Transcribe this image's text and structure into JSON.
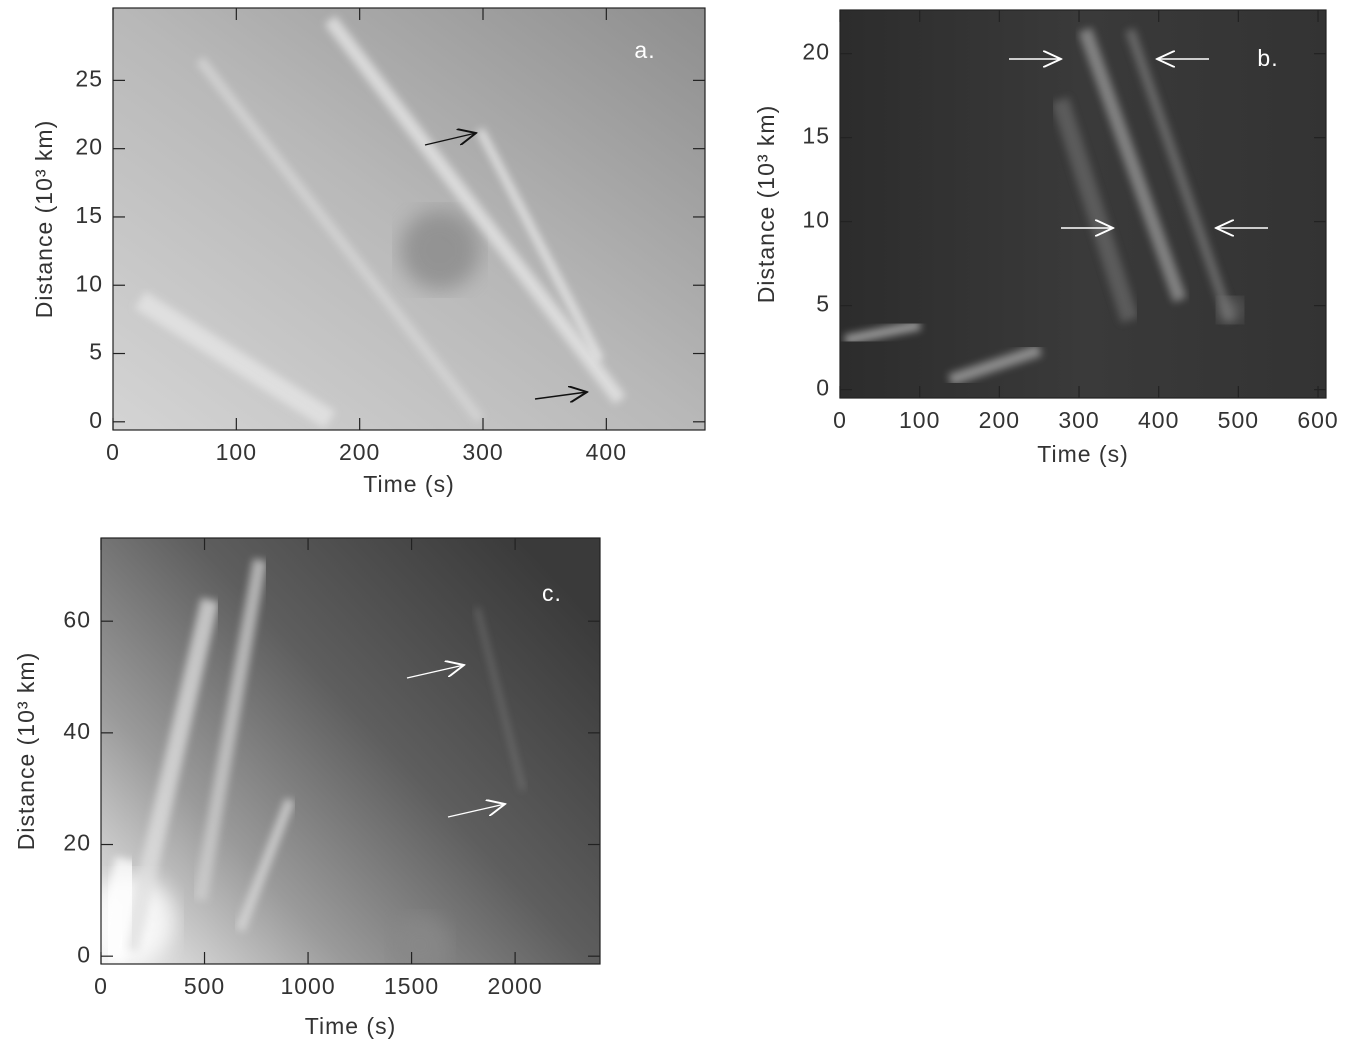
{
  "chart_data": [
    {
      "type": "image",
      "annotation": "a.",
      "x_label": "Time (s)",
      "y_label": "Distance (10³ km)",
      "xlim": [
        0,
        480
      ],
      "ylim": [
        -0.6,
        30.3
      ],
      "xticks": [
        0,
        100,
        200,
        300,
        400
      ],
      "yticks": [
        0,
        5,
        10,
        15,
        20,
        25
      ]
    },
    {
      "type": "image",
      "annotation": "b.",
      "x_label": "Time (s)",
      "y_label": "Distance (10³ km)",
      "xlim": [
        0,
        610
      ],
      "ylim": [
        -0.5,
        22.6
      ],
      "xticks": [
        0,
        100,
        200,
        300,
        400,
        500,
        600
      ],
      "yticks": [
        0,
        5,
        10,
        15,
        20
      ]
    },
    {
      "type": "image",
      "annotation": "c.",
      "x_label": "Time (s)",
      "y_label": "Distance (10³ km)",
      "xlim": [
        0,
        2410
      ],
      "ylim": [
        -1.4,
        74.9
      ],
      "xticks": [
        0,
        500,
        1000,
        1500,
        2000
      ],
      "yticks": [
        0,
        20,
        40,
        60
      ]
    }
  ]
}
